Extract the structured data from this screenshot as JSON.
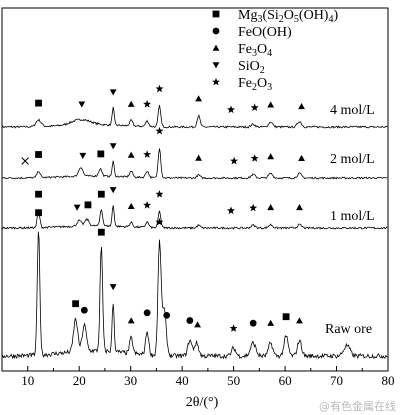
{
  "chart_data": {
    "type": "line",
    "xlabel": "2θ/(°)",
    "xlim": [
      5,
      80
    ],
    "x_ticks": [
      10,
      20,
      30,
      40,
      50,
      60,
      70,
      80
    ],
    "y_ticks_shown": false,
    "grid": false,
    "legend_position": "top-right",
    "legend": [
      {
        "marker": "square",
        "label": "Mg3(Si2O5(OH)4)"
      },
      {
        "marker": "circle",
        "label": "FeO(OH)"
      },
      {
        "marker": "triangle-up",
        "label": "Fe3O4"
      },
      {
        "marker": "triangle-down",
        "label": "SiO2"
      },
      {
        "marker": "star",
        "label": "Fe2O3"
      }
    ],
    "series": [
      {
        "name": "4 mol/L",
        "baseline": 0.0,
        "peaks": [
          [
            12.1,
            0.12,
            0.5
          ],
          [
            20.3,
            0.1,
            1.8
          ],
          [
            26.6,
            0.32,
            0.2
          ],
          [
            30.1,
            0.1,
            0.3
          ],
          [
            33.2,
            0.1,
            0.3
          ],
          [
            35.6,
            0.38,
            0.25
          ],
          [
            43.2,
            0.2,
            0.3
          ],
          [
            53.8,
            0.05,
            0.4
          ],
          [
            57.2,
            0.09,
            0.4
          ],
          [
            62.8,
            0.1,
            0.4
          ]
        ],
        "markers": [
          {
            "shape": "square",
            "x": 12.1
          },
          {
            "shape": "triangle-down",
            "x": 20.5
          },
          {
            "shape": "triangle-down",
            "x": 26.6
          },
          {
            "shape": "triangle-up",
            "x": 30.1
          },
          {
            "shape": "star",
            "x": 33.2
          },
          {
            "shape": "star",
            "x": 35.6
          },
          {
            "shape": "triangle-up",
            "x": 43.2
          },
          {
            "shape": "star",
            "x": 49.5
          },
          {
            "shape": "star",
            "x": 54.1
          },
          {
            "shape": "triangle-up",
            "x": 57.2
          },
          {
            "shape": "triangle-up",
            "x": 63.2
          }
        ]
      },
      {
        "name": "2 mol/L",
        "baseline": 0.0,
        "peaks": [
          [
            12.1,
            0.13,
            0.3
          ],
          [
            20.3,
            0.18,
            0.4
          ],
          [
            24.1,
            0.15,
            0.3
          ],
          [
            26.6,
            0.3,
            0.2
          ],
          [
            30.1,
            0.12,
            0.3
          ],
          [
            33.2,
            0.13,
            0.3
          ],
          [
            35.6,
            0.6,
            0.25
          ],
          [
            43.2,
            0.06,
            0.3
          ],
          [
            53.8,
            0.07,
            0.4
          ],
          [
            57.2,
            0.09,
            0.4
          ],
          [
            62.8,
            0.09,
            0.4
          ]
        ],
        "markers": [
          {
            "shape": "cross",
            "x": 9.5
          },
          {
            "shape": "square",
            "x": 12.1
          },
          {
            "shape": "triangle-down",
            "x": 20.7
          },
          {
            "shape": "square",
            "x": 24.2
          },
          {
            "shape": "triangle-down",
            "x": 26.6
          },
          {
            "shape": "triangle-up",
            "x": 30.1
          },
          {
            "shape": "star",
            "x": 33.2
          },
          {
            "shape": "star",
            "x": 35.6
          },
          {
            "shape": "triangle-up",
            "x": 43.2
          },
          {
            "shape": "star",
            "x": 50.1
          },
          {
            "shape": "star",
            "x": 54.1
          },
          {
            "shape": "triangle-up",
            "x": 57.2
          },
          {
            "shape": "triangle-up",
            "x": 63.2
          }
        ]
      },
      {
        "name": "1 mol/L",
        "baseline": 0.0,
        "peaks": [
          [
            12.1,
            0.3,
            0.25
          ],
          [
            20.0,
            0.1,
            0.4
          ],
          [
            21.5,
            0.12,
            0.4
          ],
          [
            24.3,
            0.3,
            0.25
          ],
          [
            26.6,
            0.38,
            0.2
          ],
          [
            30.1,
            0.08,
            0.3
          ],
          [
            33.2,
            0.1,
            0.3
          ],
          [
            35.6,
            0.3,
            0.25
          ],
          [
            43.2,
            0.05,
            0.3
          ],
          [
            53.8,
            0.05,
            0.4
          ],
          [
            57.2,
            0.06,
            0.4
          ],
          [
            62.8,
            0.06,
            0.4
          ]
        ],
        "markers": [
          {
            "shape": "square",
            "x": 12.1
          },
          {
            "shape": "triangle-down",
            "x": 19.6
          },
          {
            "shape": "square",
            "x": 21.7
          },
          {
            "shape": "square",
            "x": 24.3
          },
          {
            "shape": "triangle-down",
            "x": 26.6
          },
          {
            "shape": "triangle-up",
            "x": 30.1
          },
          {
            "shape": "star",
            "x": 33.2
          },
          {
            "shape": "star",
            "x": 35.6
          },
          {
            "shape": "star",
            "x": 49.5
          },
          {
            "shape": "star",
            "x": 53.8
          },
          {
            "shape": "triangle-up",
            "x": 57.2
          },
          {
            "shape": "triangle-up",
            "x": 62.8
          }
        ]
      },
      {
        "name": "Raw ore",
        "baseline": 0.0,
        "peaks": [
          [
            12.1,
            0.95,
            0.25
          ],
          [
            19.3,
            0.25,
            0.4
          ],
          [
            21.0,
            0.2,
            0.4
          ],
          [
            24.3,
            0.8,
            0.25
          ],
          [
            26.6,
            0.38,
            0.2
          ],
          [
            30.1,
            0.12,
            0.3
          ],
          [
            33.2,
            0.18,
            0.3
          ],
          [
            35.6,
            0.85,
            0.3
          ],
          [
            36.5,
            0.35,
            0.4
          ],
          [
            41.5,
            0.12,
            0.4
          ],
          [
            42.8,
            0.1,
            0.4
          ],
          [
            50.0,
            0.06,
            0.4
          ],
          [
            53.8,
            0.1,
            0.5
          ],
          [
            57.2,
            0.1,
            0.4
          ],
          [
            60.2,
            0.15,
            0.4
          ],
          [
            62.8,
            0.12,
            0.4
          ],
          [
            72.0,
            0.08,
            0.6
          ]
        ],
        "markers": [
          {
            "shape": "square",
            "x": 12.1
          },
          {
            "shape": "square",
            "x": 19.3
          },
          {
            "shape": "circle",
            "x": 21.0
          },
          {
            "shape": "square",
            "x": 24.3
          },
          {
            "shape": "triangle-down",
            "x": 26.6
          },
          {
            "shape": "triangle-up",
            "x": 30.1
          },
          {
            "shape": "circle",
            "x": 33.2
          },
          {
            "shape": "star",
            "x": 35.6
          },
          {
            "shape": "circle",
            "x": 37.0
          },
          {
            "shape": "circle",
            "x": 41.5
          },
          {
            "shape": "triangle-up",
            "x": 43.0
          },
          {
            "shape": "star",
            "x": 50.0
          },
          {
            "shape": "circle",
            "x": 53.8
          },
          {
            "shape": "triangle-up",
            "x": 57.2
          },
          {
            "shape": "square",
            "x": 60.2
          },
          {
            "shape": "triangle-up",
            "x": 62.8
          }
        ]
      }
    ]
  },
  "watermark": "@有色金属在线",
  "colors": {
    "line": "#000000",
    "background": "#ffffff",
    "watermark": "#b9b9b9"
  }
}
